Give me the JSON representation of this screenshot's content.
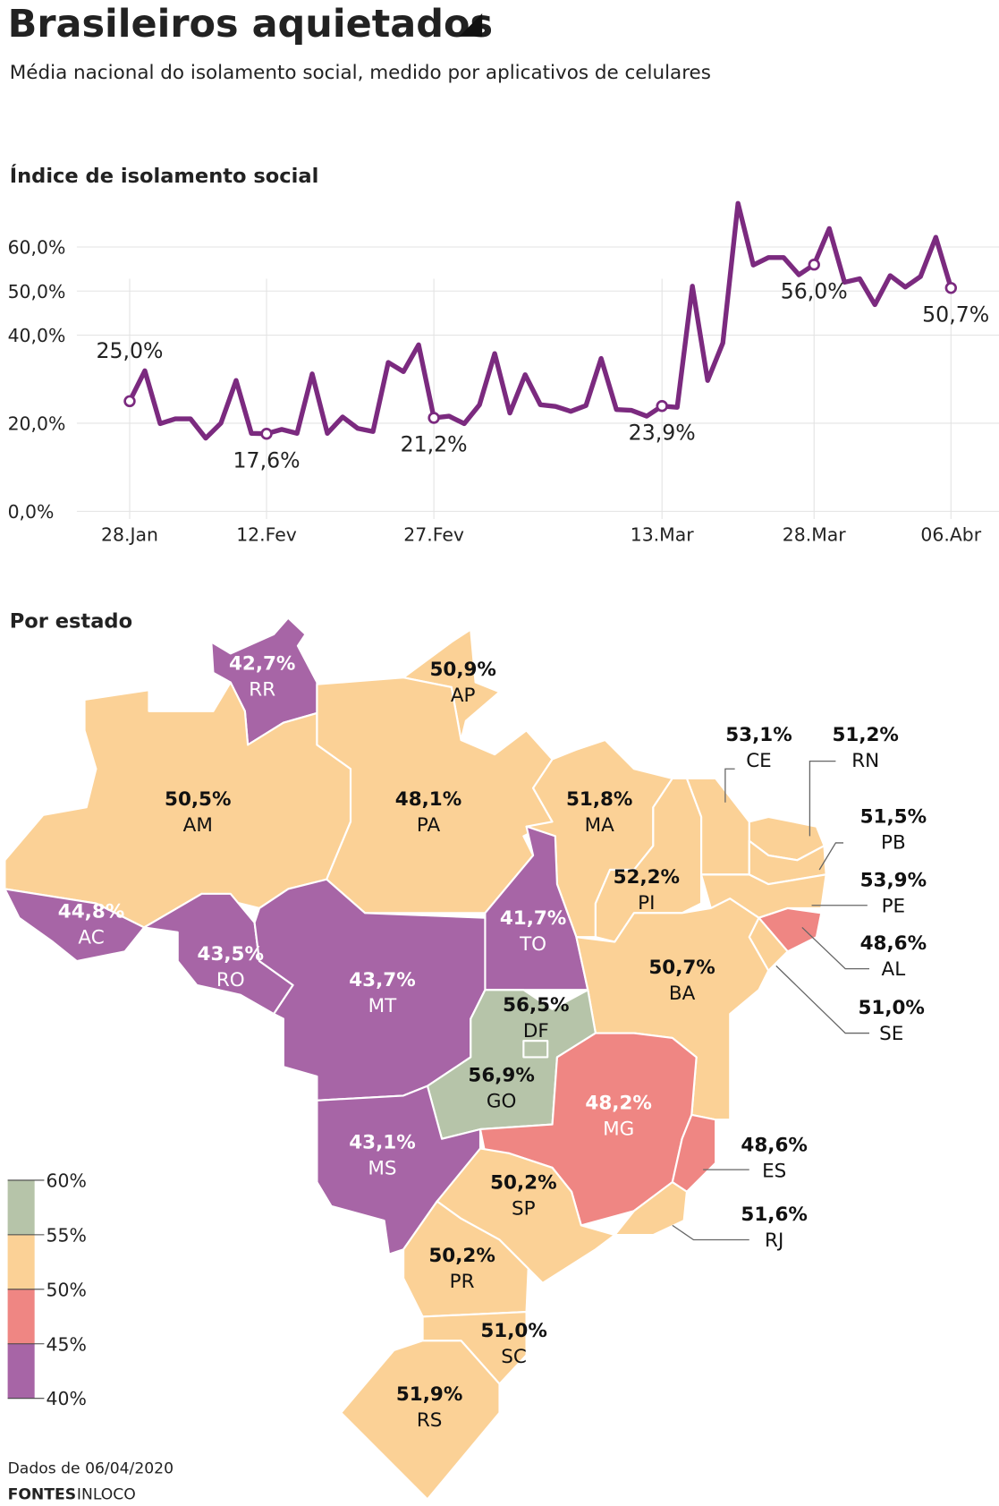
{
  "title": "Brasileiros aquietados",
  "subtitle": "Média nacional do isolamento social, medido por aplicativos de celulares",
  "footer": {
    "note": "Dados de 06/04/2020",
    "sources_label": "FONTES",
    "sources": "INLOCO"
  },
  "chart_data": [
    {
      "type": "line",
      "title": "Índice de isolamento social",
      "categories": [
        "28.Jan",
        null,
        null,
        null,
        null,
        null,
        null,
        null,
        null,
        "12.Fev",
        null,
        null,
        null,
        null,
        null,
        null,
        null,
        null,
        null,
        null,
        "27.Fev",
        null,
        null,
        null,
        null,
        null,
        null,
        null,
        null,
        null,
        null,
        null,
        null,
        null,
        null,
        "13.Mar",
        null,
        null,
        null,
        null,
        null,
        null,
        null,
        null,
        null,
        "28.Mar",
        null,
        null,
        null,
        null,
        null,
        null,
        null,
        null,
        "06.Abr"
      ],
      "series": [
        {
          "color": "#7b2a7f",
          "values": [
            25.0,
            31.9,
            19.9,
            21,
            21,
            16.6,
            20,
            29.7,
            17.7,
            17.6,
            18.6,
            17.7,
            31.2,
            17.7,
            21.4,
            18.8,
            18.1,
            33.8,
            31.7,
            37.8,
            21.2,
            21.6,
            19.9,
            24.2,
            35.8,
            22.3,
            31,
            24.2,
            23.8,
            22.7,
            24,
            34.7,
            23.1,
            22.9,
            21.6,
            23.9,
            23.6,
            51.1,
            29.7,
            38.2,
            69.9,
            55.9,
            57.6,
            57.6,
            53.7,
            56.0,
            64.2,
            52,
            52.8,
            46.9,
            53.5,
            50.9,
            53.3,
            62.2,
            50.7
          ],
          "value_labels": [
            "25,0%",
            null,
            null,
            null,
            null,
            null,
            null,
            null,
            null,
            "17,6%",
            null,
            null,
            null,
            null,
            null,
            null,
            null,
            null,
            null,
            null,
            "21,2%",
            null,
            null,
            null,
            null,
            null,
            null,
            null,
            null,
            null,
            null,
            null,
            null,
            null,
            null,
            "23,9%",
            null,
            null,
            null,
            null,
            null,
            null,
            null,
            null,
            null,
            "56,0%",
            null,
            null,
            null,
            null,
            null,
            null,
            null,
            null,
            "50,7%"
          ]
        }
      ],
      "ylim": [
        0,
        60
      ],
      "yticks": [
        {
          "value": 0,
          "label": "0,0%"
        },
        {
          "value": 20,
          "label": "20,0%"
        },
        {
          "value": 40,
          "label": "40,0%"
        },
        {
          "value": 50,
          "label": "50,0%"
        },
        {
          "value": 60,
          "label": "60,0%"
        }
      ],
      "grid": true
    },
    {
      "type": "choropleth",
      "title": "Por estado",
      "states": [
        {
          "name": "RR",
          "value": 42.7,
          "value_label": "42,7%",
          "color": "#a765a6"
        },
        {
          "name": "AP",
          "value": 50.9,
          "value_label": "50,9%",
          "color": "#fbd196"
        },
        {
          "name": "AM",
          "value": 50.5,
          "value_label": "50,5%",
          "color": "#fbd196"
        },
        {
          "name": "PA",
          "value": 48.1,
          "value_label": "48,1%",
          "color": "#fbd196"
        },
        {
          "name": "MA",
          "value": 51.8,
          "value_label": "51,8%",
          "color": "#fbd196"
        },
        {
          "name": "CE",
          "value": 53.1,
          "value_label": "53,1%",
          "color": "#fbd196"
        },
        {
          "name": "RN",
          "value": 51.2,
          "value_label": "51,2%",
          "color": "#fbd196"
        },
        {
          "name": "PB",
          "value": 51.5,
          "value_label": "51,5%",
          "color": "#fbd196"
        },
        {
          "name": "PE",
          "value": 53.9,
          "value_label": "53,9%",
          "color": "#fbd196"
        },
        {
          "name": "AL",
          "value": 48.6,
          "value_label": "48,6%",
          "color": "#ef8683"
        },
        {
          "name": "SE",
          "value": 51.0,
          "value_label": "51,0%",
          "color": "#fbd196"
        },
        {
          "name": "PI",
          "value": 52.2,
          "value_label": "52,2%",
          "color": "#fbd196"
        },
        {
          "name": "TO",
          "value": 41.7,
          "value_label": "41,7%",
          "color": "#a765a6"
        },
        {
          "name": "AC",
          "value": 44.8,
          "value_label": "44,8%",
          "color": "#a765a6"
        },
        {
          "name": "RO",
          "value": 43.5,
          "value_label": "43,5%",
          "color": "#a765a6"
        },
        {
          "name": "MT",
          "value": 43.7,
          "value_label": "43,7%",
          "color": "#a765a6"
        },
        {
          "name": "BA",
          "value": 50.7,
          "value_label": "50,7%",
          "color": "#fbd196"
        },
        {
          "name": "DF",
          "value": 56.5,
          "value_label": "56,5%",
          "color": "#b6c4a9"
        },
        {
          "name": "GO",
          "value": 56.9,
          "value_label": "56,9%",
          "color": "#b6c4a9"
        },
        {
          "name": "MG",
          "value": 48.2,
          "value_label": "48,2%",
          "color": "#ef8683"
        },
        {
          "name": "ES",
          "value": 48.6,
          "value_label": "48,6%",
          "color": "#ef8683"
        },
        {
          "name": "RJ",
          "value": 51.6,
          "value_label": "51,6%",
          "color": "#fbd196"
        },
        {
          "name": "MS",
          "value": 43.1,
          "value_label": "43,1%",
          "color": "#a765a6"
        },
        {
          "name": "SP",
          "value": 50.2,
          "value_label": "50,2%",
          "color": "#fbd196"
        },
        {
          "name": "PR",
          "value": 50.2,
          "value_label": "50,2%",
          "color": "#fbd196"
        },
        {
          "name": "SC",
          "value": 51.0,
          "value_label": "51,0%",
          "color": "#fbd196"
        },
        {
          "name": "RS",
          "value": 51.9,
          "value_label": "51,9%",
          "color": "#fbd196"
        }
      ],
      "legend_ticks": [
        {
          "value": 60,
          "label": "60%"
        },
        {
          "value": 55,
          "label": "55%"
        },
        {
          "value": 50,
          "label": "50%"
        },
        {
          "value": 45,
          "label": "45%"
        },
        {
          "value": 40,
          "label": "40%"
        }
      ],
      "legend_colors": [
        "#b6c4a9",
        "#fbd196",
        "#ef8683",
        "#a765a6"
      ]
    }
  ]
}
